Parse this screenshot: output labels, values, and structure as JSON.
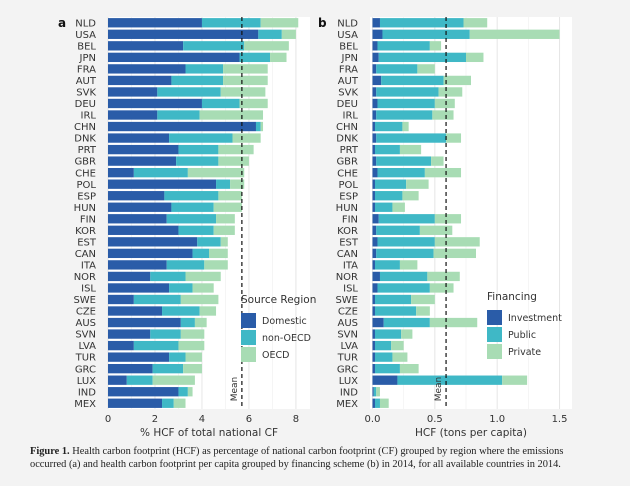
{
  "caption": {
    "label": "Figure 1.",
    "text": "Health carbon footprint (HCF) as percentage of national carbon footprint (CF) grouped by region where the emissions occurred (a) and health carbon footprint per capita grouped by financing scheme (b) in 2014, for all available countries in 2014."
  },
  "colors": {
    "dark_blue": "#2a5ca8",
    "teal": "#3fb8c6",
    "light_green": "#a8dcb4",
    "panel_bg": "#ffffff",
    "grid": "#e6e6e6"
  },
  "chart_data": [
    {
      "panel_label": "a",
      "type": "bar",
      "orientation": "horizontal",
      "stacked": true,
      "categories": [
        "NLD",
        "USA",
        "BEL",
        "JPN",
        "FRA",
        "AUT",
        "SVK",
        "DEU",
        "IRL",
        "CHN",
        "DNK",
        "PRT",
        "GBR",
        "CHE",
        "POL",
        "ESP",
        "HUN",
        "FIN",
        "KOR",
        "EST",
        "CAN",
        "ITA",
        "NOR",
        "ISL",
        "SWE",
        "CZE",
        "AUS",
        "SVN",
        "LVA",
        "TUR",
        "GRC",
        "LUX",
        "IND",
        "MEX"
      ],
      "series": [
        {
          "name": "Domestic",
          "color": "#2a5ca8",
          "values": [
            4.0,
            6.4,
            3.2,
            5.6,
            3.3,
            2.7,
            2.1,
            4.0,
            2.1,
            6.3,
            2.6,
            3.0,
            2.9,
            1.1,
            4.6,
            2.4,
            2.7,
            2.5,
            3.0,
            3.8,
            3.6,
            2.5,
            1.8,
            2.6,
            1.1,
            2.3,
            3.1,
            1.8,
            1.1,
            2.6,
            1.9,
            0.8,
            3.0,
            2.3
          ]
        },
        {
          "name": "non-OECD",
          "color": "#3fb8c6",
          "values": [
            2.5,
            1.0,
            2.6,
            1.3,
            1.6,
            2.2,
            2.7,
            1.6,
            1.8,
            0.2,
            2.7,
            1.7,
            1.8,
            2.3,
            0.6,
            2.3,
            1.8,
            2.1,
            1.5,
            1.0,
            0.7,
            1.6,
            1.5,
            1.0,
            2.0,
            1.6,
            0.6,
            1.3,
            1.9,
            0.7,
            1.3,
            1.1,
            0.4,
            0.5
          ]
        },
        {
          "name": "OECD",
          "color": "#a8dcb4",
          "values": [
            1.6,
            0.6,
            1.9,
            0.7,
            1.9,
            1.9,
            1.9,
            1.2,
            2.7,
            0.1,
            1.2,
            1.5,
            1.3,
            2.4,
            0.6,
            1.0,
            1.2,
            0.8,
            0.9,
            0.3,
            0.8,
            1.0,
            1.5,
            0.9,
            1.6,
            0.7,
            0.5,
            1.0,
            1.1,
            0.7,
            0.8,
            1.8,
            0.2,
            0.5
          ]
        }
      ],
      "mean": 5.7,
      "mean_label": "Mean",
      "xlabel": "% HCF of total national CF",
      "xlim": [
        0,
        8.6
      ],
      "xticks": [
        0,
        2,
        4,
        6,
        8
      ],
      "legend_title": "Source Region",
      "legend_position": "bottom-right",
      "grid": true
    },
    {
      "panel_label": "b",
      "type": "bar",
      "orientation": "horizontal",
      "stacked": true,
      "categories": [
        "NLD",
        "USA",
        "BEL",
        "JPN",
        "FRA",
        "AUT",
        "SVK",
        "DEU",
        "IRL",
        "CHN",
        "DNK",
        "PRT",
        "GBR",
        "CHE",
        "POL",
        "ESP",
        "HUN",
        "FIN",
        "KOR",
        "EST",
        "CAN",
        "ITA",
        "NOR",
        "ISL",
        "SWE",
        "CZE",
        "AUS",
        "SVN",
        "LVA",
        "TUR",
        "GRC",
        "LUX",
        "IND",
        "MEX"
      ],
      "series": [
        {
          "name": "Investment",
          "color": "#2a5ca8",
          "values": [
            0.06,
            0.08,
            0.04,
            0.05,
            0.03,
            0.07,
            0.03,
            0.04,
            0.03,
            0.02,
            0.03,
            0.02,
            0.03,
            0.04,
            0.02,
            0.02,
            0.02,
            0.05,
            0.03,
            0.04,
            0.03,
            0.02,
            0.06,
            0.04,
            0.02,
            0.02,
            0.09,
            0.02,
            0.02,
            0.02,
            0.02,
            0.2,
            0.01,
            0.02
          ]
        },
        {
          "name": "Public",
          "color": "#3fb8c6",
          "values": [
            0.67,
            0.7,
            0.42,
            0.7,
            0.33,
            0.5,
            0.5,
            0.46,
            0.45,
            0.22,
            0.56,
            0.2,
            0.44,
            0.38,
            0.25,
            0.22,
            0.14,
            0.45,
            0.35,
            0.46,
            0.46,
            0.2,
            0.38,
            0.42,
            0.29,
            0.33,
            0.37,
            0.21,
            0.13,
            0.14,
            0.2,
            0.84,
            0.02,
            0.04
          ]
        },
        {
          "name": "Private",
          "color": "#a8dcb4",
          "values": [
            0.19,
            0.72,
            0.09,
            0.14,
            0.14,
            0.22,
            0.19,
            0.16,
            0.17,
            0.05,
            0.12,
            0.17,
            0.1,
            0.29,
            0.18,
            0.13,
            0.1,
            0.21,
            0.26,
            0.36,
            0.34,
            0.14,
            0.26,
            0.19,
            0.19,
            0.11,
            0.38,
            0.09,
            0.1,
            0.12,
            0.15,
            0.2,
            0.03,
            0.07
          ]
        }
      ],
      "mean": 0.59,
      "mean_label": "Mean",
      "xlabel": "HCF (tons per capita)",
      "xlim": [
        -0.02,
        1.6
      ],
      "xticks": [
        0.0,
        0.5,
        1.0,
        1.5
      ],
      "xtick_labels": [
        "0.0",
        "0.5",
        "1.0",
        "1.5"
      ],
      "legend_title": "Financing",
      "legend_position": "bottom-right",
      "grid": true
    }
  ]
}
